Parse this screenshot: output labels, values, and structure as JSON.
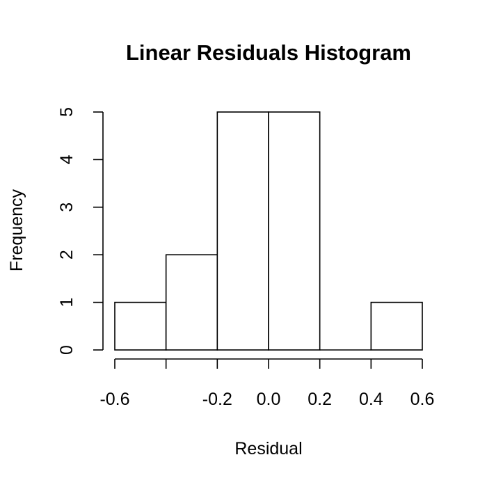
{
  "chart_data": {
    "type": "bar",
    "title": "Linear Residuals Histogram",
    "xlabel": "Residual",
    "ylabel": "Frequency",
    "bins": [
      {
        "from": -0.6,
        "to": -0.4,
        "count": 1
      },
      {
        "from": -0.4,
        "to": -0.2,
        "count": 2
      },
      {
        "from": -0.2,
        "to": 0.0,
        "count": 5
      },
      {
        "from": 0.0,
        "to": 0.2,
        "count": 5
      },
      {
        "from": 0.2,
        "to": 0.4,
        "count": 0
      },
      {
        "from": 0.4,
        "to": 0.6,
        "count": 1
      }
    ],
    "xlim": [
      -0.6,
      0.6
    ],
    "ylim": [
      0,
      5
    ],
    "x_ticks": [
      -0.6,
      -0.4,
      -0.2,
      0.0,
      0.2,
      0.4,
      0.6
    ],
    "x_tick_labels": [
      "-0.6",
      "",
      "-0.2",
      "0.0",
      "0.2",
      "0.4",
      "0.6"
    ],
    "y_ticks": [
      0,
      1,
      2,
      3,
      4,
      5
    ],
    "y_tick_labels": [
      "0",
      "1",
      "2",
      "3",
      "4",
      "5"
    ],
    "grid": false
  }
}
